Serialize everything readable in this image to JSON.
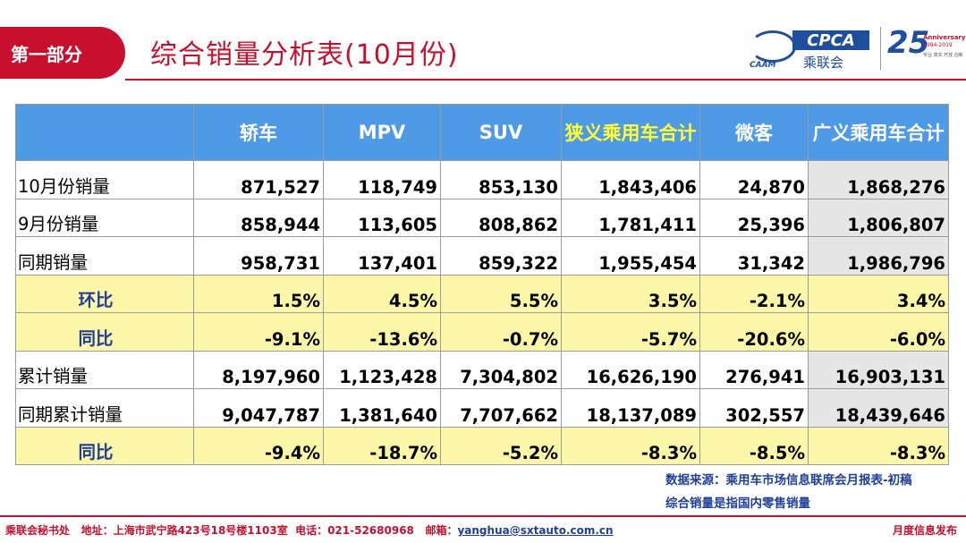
{
  "header": {
    "section_tag": "第一部分",
    "title": "综合销量分析表(10月份)",
    "logo_cpca_text": "CPCA",
    "logo_cpca_cn": "乘联会",
    "logo_cpca_sub": "CAAM",
    "logo_25_num": "25",
    "logo_25_word": "Anniversary",
    "logo_25_years": "1994-2019",
    "logo_25_tag": "专业 真实 开放 创新"
  },
  "table": {
    "columns": [
      "",
      "轿车",
      "MPV",
      "SUV",
      "狭义乘用车合计",
      "微客",
      "广义乘用车合计"
    ],
    "highlight_column_index": 4,
    "rows": [
      {
        "type": "plain",
        "label": "10月份销量",
        "values": [
          "871,527",
          "118,749",
          "853,130",
          "1,843,406",
          "24,870",
          "1,868,276"
        ]
      },
      {
        "type": "plain",
        "label": "9月份销量",
        "values": [
          "858,944",
          "113,605",
          "808,862",
          "1,781,411",
          "25,396",
          "1,806,807"
        ]
      },
      {
        "type": "plain",
        "label": "同期销量",
        "values": [
          "958,731",
          "137,401",
          "859,322",
          "1,955,454",
          "31,342",
          "1,986,796"
        ]
      },
      {
        "type": "ratio",
        "label": "环比",
        "values": [
          "1.5%",
          "4.5%",
          "5.5%",
          "3.5%",
          "-2.1%",
          "3.4%"
        ]
      },
      {
        "type": "ratio",
        "label": "同比",
        "values": [
          "-9.1%",
          "-13.6%",
          "-0.7%",
          "-5.7%",
          "-20.6%",
          "-6.0%"
        ]
      },
      {
        "type": "plain",
        "label": "累计销量",
        "values": [
          "8,197,960",
          "1,123,428",
          "7,304,802",
          "16,626,190",
          "276,941",
          "16,903,131"
        ]
      },
      {
        "type": "plain",
        "label": "同期累计销量",
        "values": [
          "9,047,787",
          "1,381,640",
          "7,707,662",
          "18,137,089",
          "302,557",
          "18,439,646"
        ]
      },
      {
        "type": "ratio",
        "label": "同比",
        "values": [
          "-9.4%",
          "-18.7%",
          "-5.2%",
          "-8.3%",
          "-8.5%",
          "-8.3%"
        ]
      }
    ]
  },
  "notes": {
    "line1": "数据来源：乘用车市场信息联席会月报表-初稿",
    "line2": "综合销量是指国内零售销量"
  },
  "footer": {
    "org": "乘联会秘书处",
    "address": "地址：上海市武宁路423号18号楼1103室",
    "phone": "电话：021-52680968",
    "email_label": "邮箱：",
    "email": "yanghua@sxtauto.com.cn",
    "right": "月度信息发布"
  },
  "colors": {
    "brand_red": "#c8102e",
    "header_blue": "#4f9ae6",
    "highlight_yellow": "#ffff33",
    "ratio_row_bg": "#fcf6a8",
    "shaded_col_bg": "#e6e6e6",
    "label_blue": "#1f3f9a"
  }
}
